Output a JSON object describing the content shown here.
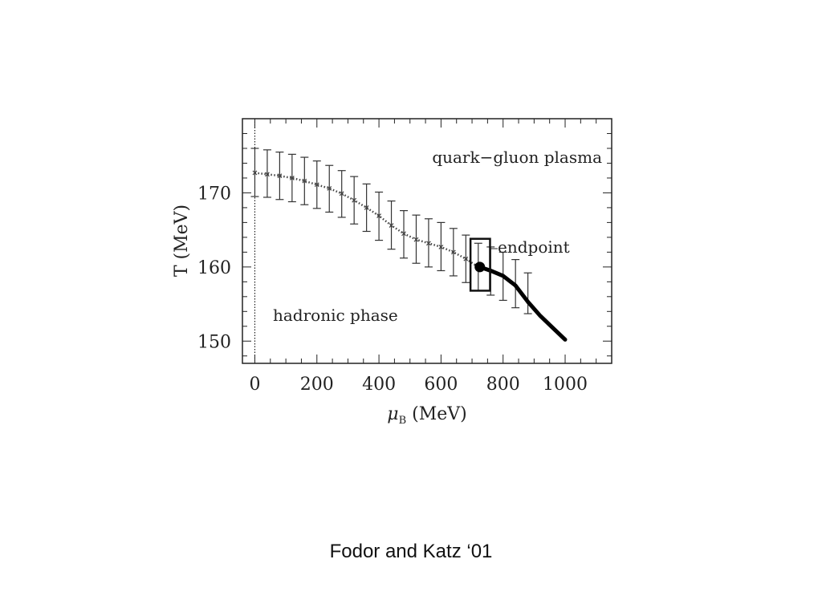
{
  "caption": "Fodor and Katz ‘01",
  "chart_data": {
    "type": "scatter",
    "xlabel_symbol": "μ",
    "xlabel_subscript": "B",
    "xlabel_unit": "(MeV)",
    "ylabel": "T (MeV)",
    "xlim": [
      -40,
      1150
    ],
    "ylim": [
      147,
      180
    ],
    "xticks": [
      0,
      200,
      400,
      600,
      800,
      1000
    ],
    "yticks": [
      150,
      160,
      170
    ],
    "annotations": {
      "qgp": "quark−gluon plasma",
      "hadronic": "hadronic phase",
      "endpoint": "endpoint"
    },
    "crossover_points": [
      {
        "x": 0,
        "y": 172.7,
        "yerr_low": 169.5,
        "yerr_high": 176.0
      },
      {
        "x": 40,
        "y": 172.5,
        "yerr_low": 169.4,
        "yerr_high": 175.8
      },
      {
        "x": 80,
        "y": 172.3,
        "yerr_low": 169.1,
        "yerr_high": 175.5
      },
      {
        "x": 120,
        "y": 172.0,
        "yerr_low": 168.8,
        "yerr_high": 175.2
      },
      {
        "x": 160,
        "y": 171.6,
        "yerr_low": 168.4,
        "yerr_high": 174.8
      },
      {
        "x": 200,
        "y": 171.1,
        "yerr_low": 167.9,
        "yerr_high": 174.3
      },
      {
        "x": 240,
        "y": 170.6,
        "yerr_low": 167.4,
        "yerr_high": 173.7
      },
      {
        "x": 280,
        "y": 169.9,
        "yerr_low": 166.7,
        "yerr_high": 173.0
      },
      {
        "x": 320,
        "y": 169.0,
        "yerr_low": 165.8,
        "yerr_high": 172.2
      },
      {
        "x": 360,
        "y": 168.0,
        "yerr_low": 164.8,
        "yerr_high": 171.2
      },
      {
        "x": 400,
        "y": 166.9,
        "yerr_low": 163.6,
        "yerr_high": 170.1
      },
      {
        "x": 440,
        "y": 165.6,
        "yerr_low": 162.4,
        "yerr_high": 168.9
      },
      {
        "x": 480,
        "y": 164.5,
        "yerr_low": 161.2,
        "yerr_high": 167.6
      },
      {
        "x": 520,
        "y": 163.7,
        "yerr_low": 160.5,
        "yerr_high": 167.0
      },
      {
        "x": 560,
        "y": 163.2,
        "yerr_low": 160.0,
        "yerr_high": 166.5
      },
      {
        "x": 600,
        "y": 162.7,
        "yerr_low": 159.5,
        "yerr_high": 166.0
      },
      {
        "x": 640,
        "y": 162.0,
        "yerr_low": 158.8,
        "yerr_high": 165.2
      },
      {
        "x": 680,
        "y": 161.1,
        "yerr_low": 157.9,
        "yerr_high": 164.3
      },
      {
        "x": 720,
        "y": 160.0,
        "yerr_low": 156.8,
        "yerr_high": 163.2
      },
      {
        "x": 760,
        "y": 159.5,
        "yerr_low": 156.2,
        "yerr_high": 162.7
      },
      {
        "x": 800,
        "y": 158.8,
        "yerr_low": 155.5,
        "yerr_high": 162.0
      },
      {
        "x": 840,
        "y": 157.7,
        "yerr_low": 154.5,
        "yerr_high": 161.0
      },
      {
        "x": 880,
        "y": 156.4,
        "yerr_low": 153.7,
        "yerr_high": 159.2
      }
    ],
    "endpoint": {
      "x": 725,
      "y": 160.0
    },
    "endpoint_box": {
      "x_low": 695,
      "x_high": 758,
      "y_low": 156.8,
      "y_high": 163.8
    },
    "first_order_line": [
      {
        "x": 725,
        "y": 160.0
      },
      {
        "x": 760,
        "y": 159.5
      },
      {
        "x": 800,
        "y": 158.8
      },
      {
        "x": 840,
        "y": 157.5
      },
      {
        "x": 880,
        "y": 155.3
      },
      {
        "x": 920,
        "y": 153.4
      },
      {
        "x": 960,
        "y": 151.8
      },
      {
        "x": 1000,
        "y": 150.2
      }
    ],
    "zero_line_x": 0
  }
}
